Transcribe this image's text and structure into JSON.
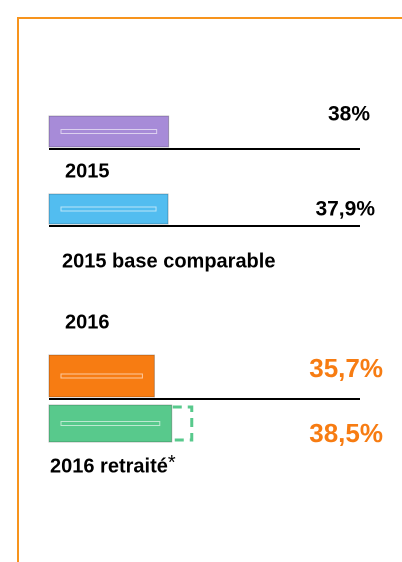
{
  "chart_data": {
    "type": "hbar",
    "categories": [
      "2015",
      "2015 base comparable",
      "2016",
      "2016 retraité"
    ],
    "values": [
      38,
      37.9,
      35.7,
      38.5
    ],
    "value_labels": [
      "38%",
      "37,9%",
      "35,7%",
      "38,5%"
    ],
    "colors": [
      "#a78bd8",
      "#52bdf0",
      "#f77c12",
      "#58c98c"
    ],
    "label_colors": [
      "#000000",
      "#000000",
      "#f77c12",
      "#f77c12"
    ],
    "footnote_mark": "*",
    "xlim": [
      18.7,
      45
    ]
  }
}
